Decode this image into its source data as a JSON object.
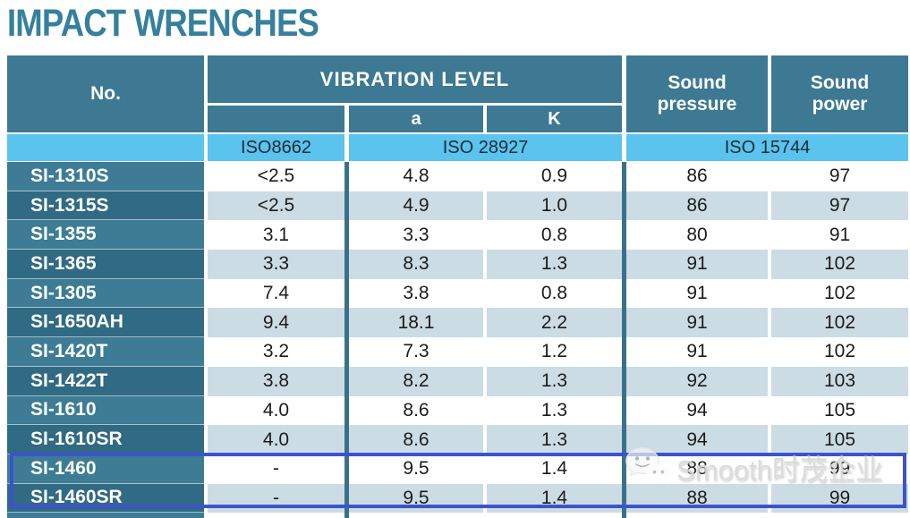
{
  "title": "IMPACT WRENCHES",
  "colors": {
    "title": "#36809e",
    "header_bg": "#3d7992",
    "model_col_light": "#3e7c95",
    "model_col_dark": "#306a83",
    "row_stripe": "#ccdce4",
    "iso_band": "#5ac3ee",
    "column_separator": "#39718c",
    "highlight_border": "#3c53cb"
  },
  "table": {
    "headers": {
      "no": "No.",
      "vibration_level": "VIBRATION LEVEL",
      "a": "a",
      "k": "K",
      "sound_pressure": "Sound pressure",
      "sound_power": "Sound power"
    },
    "standards": {
      "iso8662": "ISO8662",
      "iso28927": "ISO 28927",
      "iso15744": "ISO 15744"
    },
    "rows": [
      {
        "no": "SI-1310S",
        "iso8662": "<2.5",
        "a": "4.8",
        "k": "0.9",
        "sound_pressure": "86",
        "sound_power": "97",
        "highlighted": false
      },
      {
        "no": "SI-1315S",
        "iso8662": "<2.5",
        "a": "4.9",
        "k": "1.0",
        "sound_pressure": "86",
        "sound_power": "97",
        "highlighted": false
      },
      {
        "no": "SI-1355",
        "iso8662": "3.1",
        "a": "3.3",
        "k": "0.8",
        "sound_pressure": "80",
        "sound_power": "91",
        "highlighted": false
      },
      {
        "no": "SI-1365",
        "iso8662": "3.3",
        "a": "8.3",
        "k": "1.3",
        "sound_pressure": "91",
        "sound_power": "102",
        "highlighted": false
      },
      {
        "no": "SI-1305",
        "iso8662": "7.4",
        "a": "3.8",
        "k": "0.8",
        "sound_pressure": "91",
        "sound_power": "102",
        "highlighted": false
      },
      {
        "no": "SI-1650AH",
        "iso8662": "9.4",
        "a": "18.1",
        "k": "2.2",
        "sound_pressure": "91",
        "sound_power": "102",
        "highlighted": false
      },
      {
        "no": "SI-1420T",
        "iso8662": "3.2",
        "a": "7.3",
        "k": "1.2",
        "sound_pressure": "91",
        "sound_power": "102",
        "highlighted": false
      },
      {
        "no": "SI-1422T",
        "iso8662": "3.8",
        "a": "8.2",
        "k": "1.3",
        "sound_pressure": "92",
        "sound_power": "103",
        "highlighted": false
      },
      {
        "no": "SI-1610",
        "iso8662": "4.0",
        "a": "8.6",
        "k": "1.3",
        "sound_pressure": "94",
        "sound_power": "105",
        "highlighted": false
      },
      {
        "no": "SI-1610SR",
        "iso8662": "4.0",
        "a": "8.6",
        "k": "1.3",
        "sound_pressure": "94",
        "sound_power": "105",
        "highlighted": false
      },
      {
        "no": "SI-1460",
        "iso8662": "-",
        "a": "9.5",
        "k": "1.4",
        "sound_pressure": "88",
        "sound_power": "99",
        "highlighted": true
      },
      {
        "no": "SI-1460SR",
        "iso8662": "-",
        "a": "9.5",
        "k": "1.4",
        "sound_pressure": "88",
        "sound_power": "99",
        "highlighted": true
      }
    ]
  },
  "watermark": {
    "icon": "wechat-icon",
    "text": "Smooth时茂企业"
  }
}
